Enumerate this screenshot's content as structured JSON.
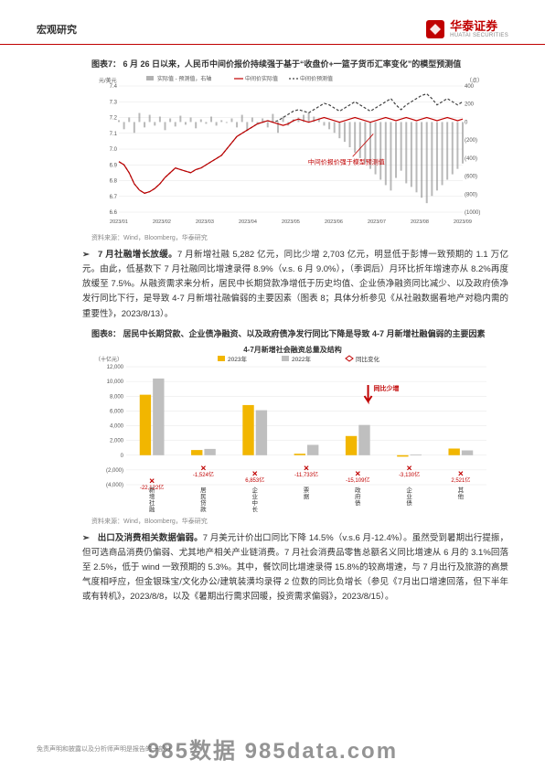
{
  "header": {
    "section": "宏观研究",
    "logo_cn": "华泰证券",
    "logo_en": "HUATAI SECURITIES"
  },
  "fig7": {
    "title": "图表7： 6 月 26 日以来，人民币中间价报价持续强于基于“收盘价+一篮子货币汇率变化”的模型预测值",
    "y_left_label": "元/美元",
    "y_right_label": "（点）",
    "legend": [
      "实际值 - 预测值，右轴",
      "中间价实际值",
      "中间价预测值"
    ],
    "annotation": "中间价报价强于模型预测值",
    "x_ticks": [
      "2023/01",
      "2023/02",
      "2023/03",
      "2023/04",
      "2023/05",
      "2023/06",
      "2023/07",
      "2023/08",
      "2023/09"
    ],
    "y_left": {
      "min": 6.6,
      "max": 7.4,
      "step": 0.1
    },
    "y_right": {
      "min": -1000,
      "max": 400,
      "step": 200
    },
    "colors": {
      "bars": "#7f7f7f",
      "actual_line": "#c00000",
      "predicted_line": "#404040",
      "grid": "#e6e6e6",
      "bg": "#ffffff"
    },
    "bars": [
      20,
      -80,
      50,
      -120,
      100,
      -60,
      80,
      -40,
      60,
      -90,
      40,
      -50,
      70,
      -30,
      50,
      -70,
      30,
      -20,
      60,
      -40,
      20,
      -10,
      40,
      -60,
      80,
      -100,
      50,
      -30,
      40,
      -60,
      90,
      -120,
      60,
      -40,
      30,
      50,
      80,
      100,
      60,
      40,
      -40,
      -80,
      -120,
      -180,
      -220,
      -280,
      -340,
      -400,
      -460,
      -520,
      -580,
      -640,
      -700,
      -760,
      -620,
      -540,
      -680,
      -720,
      -780,
      -840,
      -900,
      -820,
      -760,
      -700,
      -640,
      -580,
      -520,
      -460
    ],
    "actual": [
      6.92,
      6.9,
      6.85,
      6.78,
      6.74,
      6.72,
      6.73,
      6.75,
      6.78,
      6.82,
      6.85,
      6.88,
      6.87,
      6.86,
      6.85,
      6.87,
      6.88,
      6.9,
      6.92,
      6.94,
      6.96,
      7.0,
      7.04,
      7.08,
      7.1,
      7.12,
      7.14,
      7.16,
      7.17,
      7.18,
      7.17,
      7.16,
      7.15,
      7.16,
      7.18,
      7.19,
      7.18,
      7.17,
      7.18,
      7.19,
      7.2,
      7.19,
      7.18,
      7.17,
      7.18,
      7.19,
      7.2,
      7.19,
      7.18,
      7.17,
      7.18,
      7.19,
      7.2,
      7.19,
      7.18,
      7.19,
      7.2,
      7.19,
      7.18,
      7.19,
      7.2,
      7.19,
      7.18,
      7.19,
      7.2,
      7.19,
      7.18,
      7.19
    ],
    "predicted": [
      6.92,
      6.9,
      6.85,
      6.78,
      6.74,
      6.72,
      6.73,
      6.75,
      6.78,
      6.82,
      6.85,
      6.88,
      6.87,
      6.86,
      6.85,
      6.87,
      6.88,
      6.9,
      6.92,
      6.94,
      6.96,
      7.0,
      7.04,
      7.08,
      7.1,
      7.12,
      7.14,
      7.16,
      7.17,
      7.18,
      7.17,
      7.18,
      7.2,
      7.22,
      7.24,
      7.25,
      7.24,
      7.23,
      7.25,
      7.27,
      7.29,
      7.28,
      7.26,
      7.24,
      7.26,
      7.28,
      7.3,
      7.28,
      7.26,
      7.24,
      7.26,
      7.28,
      7.3,
      7.32,
      7.28,
      7.25,
      7.28,
      7.3,
      7.32,
      7.34,
      7.35,
      7.32,
      7.28,
      7.3,
      7.32,
      7.3,
      7.28,
      7.3
    ],
    "source": "资料来源：Wind，Bloomberg，华泰研究"
  },
  "para1": {
    "lead": "7 月社融增长放缓。",
    "body": "7 月新增社融 5,282 亿元，同比少增 2,703 亿元，明显低于彭博一致预期的 1.1 万亿元。由此，低基数下 7 月社融同比增速录得 8.9%（v.s. 6 月 9.0%），（季调后）月环比折年增速亦从 8.2%再度放缓至 7.5%。从融资需求来分析，居民中长期贷款净增低于历史均值、企业债净融资同比减少、以及政府债净发行同比下行，是导致 4-7 月新增社融偏弱的主要因素（图表 8；具体分析参见《从社融数据看地产对稳内需的重要性》，2023/8/13）。"
  },
  "fig8": {
    "title": "图表8： 居民中长期贷款、企业债净融资、以及政府债净发行同比下降是导致 4-7 月新增社融偏弱的主要因素",
    "chart_title": "4-7月新增社会融资总量及结构",
    "y_label": "（十亿元）",
    "legend": [
      "2023年",
      "2022年",
      "同比变化"
    ],
    "categories": [
      "新增社融",
      "居民贷款",
      "企业中长期贷款",
      "票据",
      "政府债",
      "企业债",
      "其他"
    ],
    "y": {
      "min": -4000,
      "max": 12000,
      "step": 2000
    },
    "series_2023": [
      8200,
      700,
      6800,
      200,
      2600,
      -200,
      900
    ],
    "series_2022": [
      10400,
      850,
      6100,
      1400,
      4100,
      100,
      650
    ],
    "diff_labels": [
      "-22,122亿",
      "-1,524亿",
      "6,853亿",
      "-11,733亿",
      "-15,109亿",
      "-3,130亿",
      "2,521亿"
    ],
    "diff_positive": [
      false,
      false,
      true,
      false,
      false,
      false,
      true
    ],
    "annotation": "同比少增",
    "colors": {
      "bar_2023": "#f2b600",
      "bar_2022": "#bfbfbf",
      "diff_marker": "#c00000",
      "grid": "#e6e6e6",
      "text": "#333333",
      "arrow": "#c00000"
    },
    "source": "资料来源：Wind，Bloomberg，华泰研究"
  },
  "para2": {
    "lead": "出口及消费相关数据偏弱。",
    "body": "7 月美元计价出口同比下降 14.5%（v.s.6 月-12.4%）。虽然受到暑期出行提振，但可选商品消费仍偏弱、尤其地产相关产业链消费。7 月社会消费品零售总额名义同比增速从 6 月的 3.1%回落至 2.5%，低于 wind 一致预期的 5.3%。其中，餐饮同比增速录得 15.8%的较高增速，与 7 月出行及旅游的高景气度相呼应，但金银珠宝/文化办公/建筑装潢均录得 2 位数的同比负增长（参见《7月出口增速回落，但下半年或有转机》，2023/8/8，以及《暑期出行需求回暖，投资需求偏弱》，2023/8/15）。"
  },
  "footer": {
    "disclaimer": "免责声明和披露以及分析师声明是报告的一部分",
    "watermark": "985数据 985data.com"
  }
}
